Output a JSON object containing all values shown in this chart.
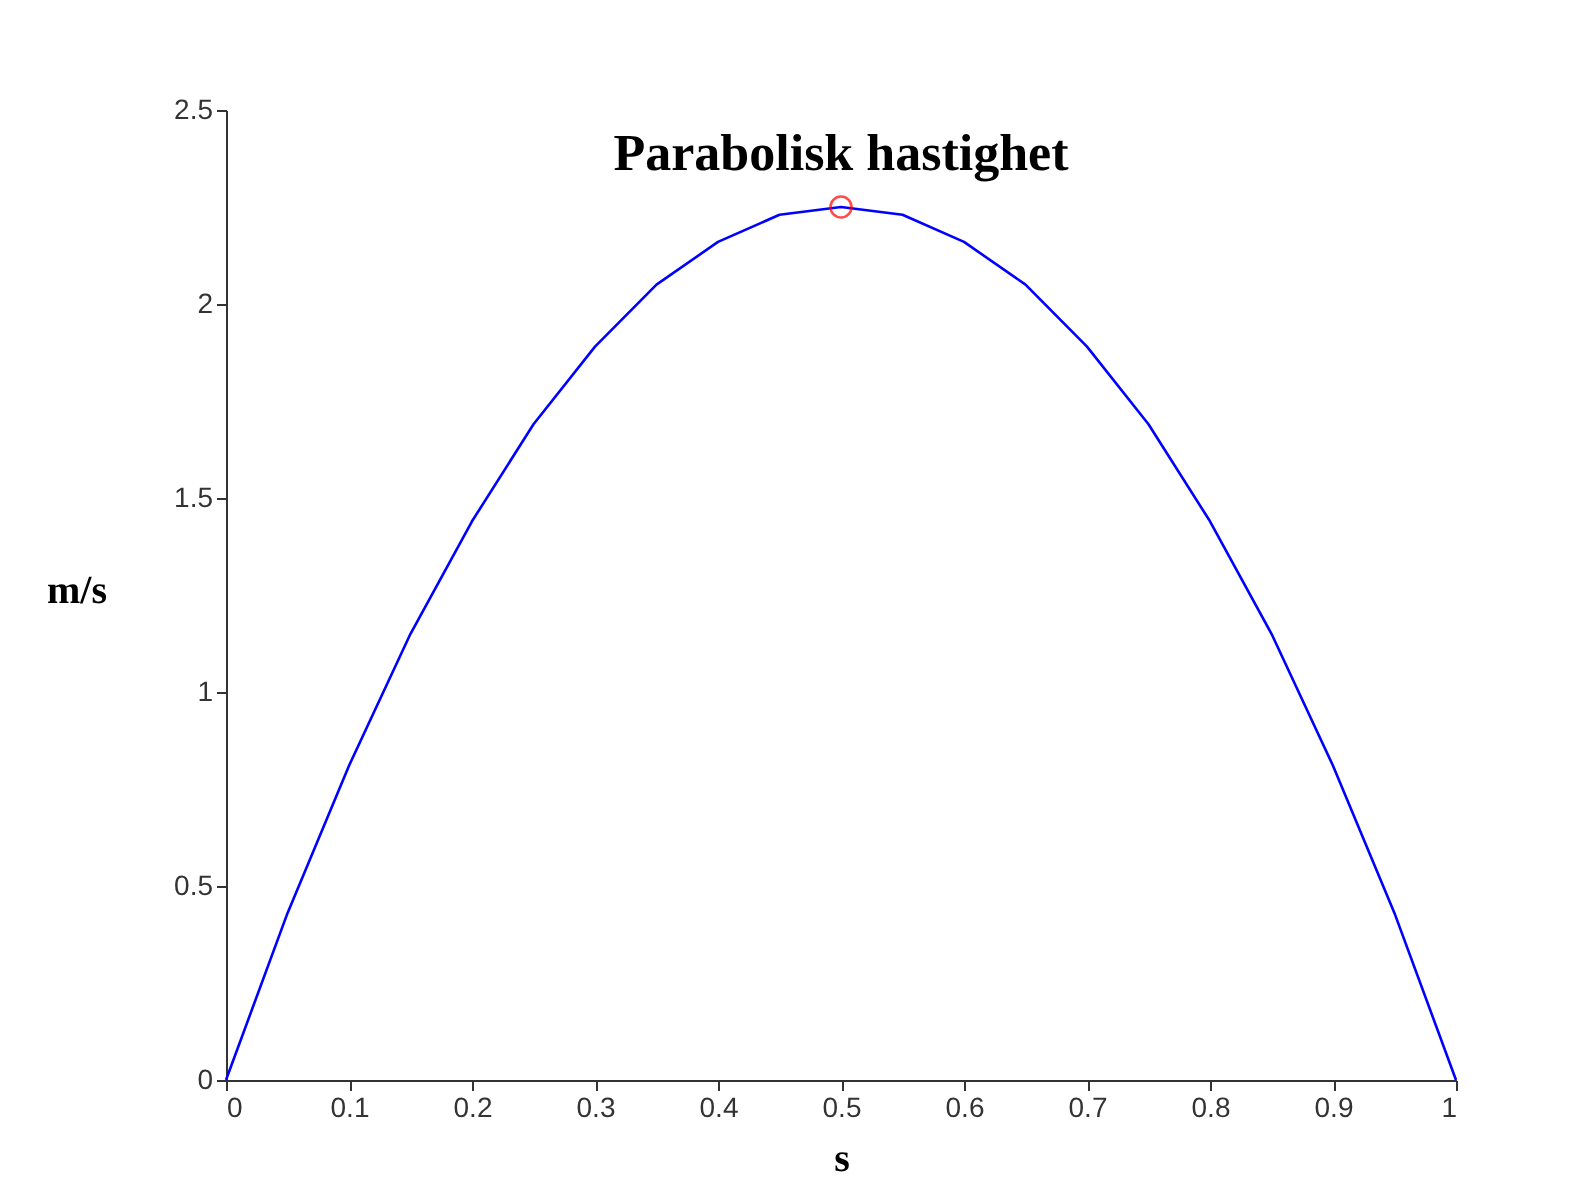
{
  "chart_data": {
    "type": "line",
    "title": "Parabolisk hastighet",
    "xlabel": "s",
    "ylabel": "m/s",
    "xlim": [
      0,
      1
    ],
    "xticks": [
      0,
      0.1,
      0.2,
      0.3,
      0.4,
      0.5,
      0.6,
      0.7,
      0.8,
      0.9,
      1
    ],
    "ylim": [
      0,
      2.5
    ],
    "yticks": [
      0,
      0.5,
      1,
      1.5,
      2,
      2.5
    ],
    "grid": false,
    "series": [
      {
        "color": "#0000ff",
        "x": [
          0,
          0.05,
          0.1,
          0.15,
          0.2,
          0.25,
          0.3,
          0.35,
          0.4,
          0.45,
          0.5,
          0.55,
          0.6,
          0.65,
          0.7,
          0.75,
          0.8,
          0.85,
          0.9,
          0.95,
          1
        ],
        "values": [
          0,
          0.43,
          0.81,
          1.15,
          1.44,
          1.69,
          1.89,
          2.05,
          2.16,
          2.23,
          2.25,
          2.23,
          2.16,
          2.05,
          1.89,
          1.69,
          1.44,
          1.15,
          0.81,
          0.43,
          0
        ]
      },
      {
        "type": "scatter",
        "marker": "circle",
        "color": "#ff0000",
        "x": [
          0.5
        ],
        "values": [
          2.25
        ]
      }
    ]
  }
}
